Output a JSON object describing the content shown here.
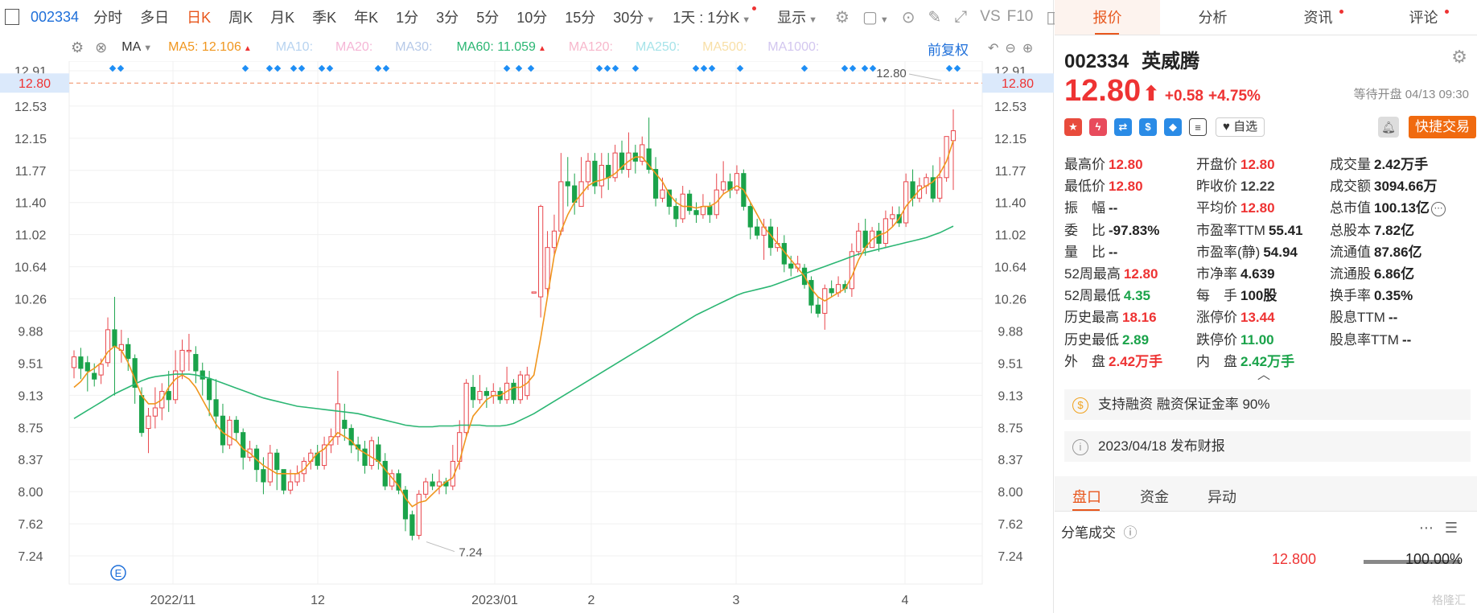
{
  "toolbar": {
    "code": "002334",
    "tabs": [
      "分时",
      "多日",
      "日K",
      "周K",
      "月K",
      "季K",
      "年K",
      "1分",
      "3分",
      "5分",
      "10分",
      "15分",
      "30分"
    ],
    "active_tab": "日K",
    "interval_select": "1天 : 1分K",
    "display_label": "显示",
    "vs_label": "VS",
    "f10_label": "F10"
  },
  "ma_row": {
    "label": "MA",
    "ma5": "MA5: 12.106",
    "ma10": "MA10:",
    "ma20": "MA20:",
    "ma30": "MA30:",
    "ma60": "MA60: 11.059",
    "ma120": "MA120:",
    "ma250": "MA250:",
    "ma500": "MA500:",
    "ma1000": "MA1000:",
    "fuquan": "前复权",
    "colors": {
      "ma5": "#f0961e",
      "ma10": "#b7d3f0",
      "ma20": "#f5b6d6",
      "ma30": "#b6c9e8",
      "ma60": "#2bb673",
      "ma120": "#f7b7cb",
      "ma250": "#a6e3e9",
      "ma500": "#f8dfa6",
      "ma1000": "#d2c6ef"
    }
  },
  "chart_data": {
    "type": "candlestick",
    "y_ticks": [
      "12.91",
      "12.53",
      "12.15",
      "11.77",
      "11.40",
      "11.02",
      "10.64",
      "10.26",
      "9.88",
      "9.51",
      "9.13",
      "8.75",
      "8.37",
      "8.00",
      "7.62",
      "7.24"
    ],
    "y_range": [
      7.05,
      12.91
    ],
    "x_labels": [
      "2022/11",
      "12",
      "2023/01",
      "2",
      "3",
      "4"
    ],
    "current_price_label": "12.80",
    "current_price": 12.8,
    "high_label": "12.80",
    "low_label": "7.24",
    "event_marker": "E",
    "candles": [
      [
        9.34,
        9.47,
        9.21,
        9.55
      ],
      [
        9.47,
        9.33,
        9.2,
        9.58
      ],
      [
        9.4,
        9.3,
        9.05,
        9.48
      ],
      [
        9.27,
        9.2,
        9.11,
        9.39
      ],
      [
        9.25,
        9.38,
        9.14,
        9.45
      ],
      [
        9.4,
        9.8,
        9.35,
        9.95
      ],
      [
        9.8,
        9.6,
        9.0,
        10.2
      ],
      [
        9.55,
        9.62,
        9.4,
        9.8
      ],
      [
        9.62,
        9.45,
        9.3,
        9.7
      ],
      [
        9.45,
        9.1,
        8.9,
        9.5
      ],
      [
        9.0,
        8.55,
        8.5,
        9.1
      ],
      [
        8.6,
        8.75,
        8.3,
        8.85
      ],
      [
        8.75,
        8.85,
        8.6,
        9.1
      ],
      [
        8.85,
        9.05,
        8.7,
        9.15
      ],
      [
        9.05,
        8.95,
        8.8,
        9.3
      ],
      [
        8.95,
        9.3,
        8.9,
        9.55
      ],
      [
        9.3,
        9.55,
        9.2,
        9.68
      ],
      [
        9.55,
        9.55,
        9.3,
        9.75
      ],
      [
        9.5,
        9.3,
        9.15,
        9.6
      ],
      [
        9.3,
        9.2,
        9.0,
        9.4
      ],
      [
        9.2,
        8.95,
        8.75,
        9.3
      ],
      [
        8.95,
        8.75,
        8.6,
        9.2
      ],
      [
        8.75,
        8.4,
        8.3,
        8.9
      ],
      [
        8.4,
        8.7,
        8.35,
        8.75
      ],
      [
        8.7,
        8.55,
        8.45,
        8.75
      ],
      [
        8.55,
        8.25,
        8.1,
        8.6
      ],
      [
        8.25,
        8.35,
        8.2,
        8.45
      ],
      [
        8.35,
        8.1,
        7.95,
        8.4
      ],
      [
        8.1,
        7.95,
        7.8,
        8.25
      ],
      [
        7.95,
        8.3,
        7.9,
        8.4
      ],
      [
        8.3,
        8.1,
        7.85,
        8.35
      ],
      [
        8.1,
        7.85,
        7.8,
        8.1
      ],
      [
        7.85,
        7.95,
        7.8,
        8.1
      ],
      [
        7.95,
        8.05,
        7.9,
        8.15
      ],
      [
        8.05,
        8.2,
        7.95,
        8.25
      ],
      [
        8.2,
        8.3,
        8.1,
        8.35
      ],
      [
        8.3,
        8.15,
        8.1,
        8.4
      ],
      [
        8.15,
        8.4,
        8.1,
        8.5
      ],
      [
        8.4,
        8.5,
        8.3,
        8.6
      ],
      [
        8.5,
        8.9,
        8.4,
        9.3
      ],
      [
        8.7,
        8.6,
        8.45,
        8.9
      ],
      [
        8.6,
        8.4,
        8.3,
        8.65
      ],
      [
        8.4,
        8.35,
        8.2,
        8.5
      ],
      [
        8.35,
        8.15,
        8.05,
        8.45
      ],
      [
        8.15,
        8.45,
        8.1,
        8.5
      ],
      [
        8.4,
        8.2,
        8.1,
        8.5
      ],
      [
        8.2,
        7.9,
        7.85,
        8.3
      ],
      [
        7.9,
        8.05,
        7.85,
        8.1
      ],
      [
        8.05,
        7.85,
        7.8,
        8.1
      ],
      [
        7.85,
        7.5,
        7.35,
        7.9
      ],
      [
        7.55,
        7.3,
        7.24,
        7.6
      ],
      [
        7.3,
        7.8,
        7.25,
        7.85
      ],
      [
        7.8,
        7.95,
        7.75,
        8.0
      ],
      [
        7.95,
        7.9,
        7.85,
        8.05
      ],
      [
        7.9,
        7.95,
        7.8,
        8.1
      ],
      [
        7.95,
        7.9,
        7.8,
        8.0
      ],
      [
        7.9,
        8.2,
        7.85,
        8.4
      ],
      [
        8.2,
        8.55,
        8.1,
        8.7
      ],
      [
        8.55,
        9.15,
        8.5,
        9.2
      ],
      [
        9.1,
        8.95,
        8.85,
        9.25
      ],
      [
        8.95,
        9.05,
        8.9,
        9.25
      ],
      [
        9.05,
        9.0,
        8.85,
        9.1
      ],
      [
        9.0,
        9.05,
        8.9,
        9.15
      ],
      [
        9.05,
        8.95,
        8.9,
        9.1
      ],
      [
        8.95,
        9.15,
        8.9,
        9.35
      ],
      [
        9.15,
        8.95,
        8.9,
        9.2
      ],
      [
        8.95,
        9.25,
        8.9,
        9.3
      ],
      [
        9.0,
        9.25,
        8.95,
        9.35
      ],
      [
        10.26,
        10.26,
        10.26,
        10.26
      ],
      [
        10.2,
        11.3,
        9.95,
        11.32
      ],
      [
        10.3,
        10.8,
        10.2,
        11.0
      ],
      [
        10.8,
        11.0,
        10.7,
        11.2
      ],
      [
        11.0,
        11.6,
        10.95,
        11.95
      ],
      [
        11.6,
        11.55,
        11.3,
        11.9
      ],
      [
        11.55,
        11.35,
        11.2,
        11.7
      ],
      [
        11.3,
        11.6,
        11.3,
        11.9
      ],
      [
        11.6,
        11.85,
        11.5,
        11.95
      ],
      [
        11.85,
        11.55,
        11.45,
        11.95
      ],
      [
        11.55,
        11.8,
        11.4,
        11.95
      ],
      [
        11.8,
        11.65,
        11.5,
        11.95
      ],
      [
        11.65,
        11.95,
        11.6,
        12.05
      ],
      [
        11.95,
        11.75,
        11.7,
        12.1
      ],
      [
        11.75,
        11.95,
        11.65,
        12.2
      ],
      [
        11.95,
        11.85,
        11.7,
        12.05
      ],
      [
        11.85,
        12.05,
        11.8,
        12.15
      ],
      [
        12.0,
        11.75,
        11.7,
        12.38
      ],
      [
        11.75,
        11.4,
        11.3,
        11.9
      ],
      [
        11.4,
        11.5,
        11.35,
        11.65
      ],
      [
        11.5,
        11.3,
        11.2,
        11.5
      ],
      [
        11.3,
        11.15,
        11.05,
        11.4
      ],
      [
        11.15,
        11.45,
        11.1,
        11.55
      ],
      [
        11.45,
        11.25,
        11.2,
        11.5
      ],
      [
        11.25,
        11.2,
        11.1,
        11.35
      ],
      [
        11.2,
        11.3,
        11.15,
        11.45
      ],
      [
        11.3,
        11.2,
        11.1,
        11.35
      ],
      [
        11.2,
        11.5,
        11.15,
        11.7
      ],
      [
        11.5,
        11.6,
        11.45,
        11.85
      ],
      [
        11.6,
        11.5,
        11.4,
        11.7
      ],
      [
        11.5,
        11.7,
        11.45,
        11.8
      ],
      [
        11.7,
        11.3,
        11.25,
        11.75
      ],
      [
        11.3,
        11.05,
        10.9,
        11.35
      ],
      [
        11.05,
        10.95,
        10.9,
        11.15
      ],
      [
        10.95,
        11.05,
        10.65,
        11.15
      ],
      [
        11.05,
        10.8,
        10.7,
        11.15
      ],
      [
        10.8,
        10.85,
        10.75,
        11.05
      ],
      [
        10.85,
        10.6,
        10.5,
        10.95
      ],
      [
        10.6,
        10.55,
        10.45,
        10.7
      ],
      [
        10.55,
        10.6,
        10.5,
        10.7
      ],
      [
        10.55,
        10.35,
        10.3,
        10.6
      ],
      [
        10.4,
        10.1,
        10.0,
        10.45
      ],
      [
        10.1,
        10.0,
        9.95,
        10.2
      ],
      [
        10.0,
        10.3,
        9.8,
        10.35
      ],
      [
        10.3,
        10.25,
        10.2,
        10.4
      ],
      [
        10.25,
        10.35,
        10.2,
        10.45
      ],
      [
        10.35,
        10.3,
        10.25,
        10.4
      ],
      [
        10.3,
        10.75,
        10.2,
        10.85
      ],
      [
        10.75,
        11.0,
        10.7,
        11.1
      ],
      [
        11.0,
        10.8,
        10.7,
        11.15
      ],
      [
        10.8,
        11.0,
        10.8,
        11.05
      ],
      [
        11.0,
        10.85,
        10.75,
        11.1
      ],
      [
        10.85,
        11.15,
        10.8,
        11.25
      ],
      [
        11.15,
        11.2,
        11.05,
        11.3
      ],
      [
        11.2,
        11.1,
        11.05,
        11.3
      ],
      [
        11.1,
        11.6,
        11.05,
        11.7
      ],
      [
        11.6,
        11.4,
        11.3,
        11.75
      ],
      [
        11.4,
        11.55,
        11.35,
        11.65
      ],
      [
        11.55,
        11.65,
        11.45,
        11.7
      ],
      [
        11.65,
        11.4,
        11.35,
        11.8
      ],
      [
        11.4,
        11.65,
        11.35,
        11.9
      ],
      [
        11.65,
        12.15,
        11.6,
        12.15
      ],
      [
        12.1,
        12.22,
        11.5,
        12.48
      ]
    ],
    "ma5": [
      9.1,
      9.17,
      9.28,
      9.33,
      9.4,
      9.53,
      9.6,
      9.55,
      9.4,
      9.2,
      9.0,
      8.9,
      8.9,
      8.95,
      9.1,
      9.2,
      9.25,
      9.2,
      9.1,
      8.95,
      8.8,
      8.65,
      8.55,
      8.5,
      8.45,
      8.35,
      8.3,
      8.22,
      8.15,
      8.1,
      8.05,
      8.05,
      8.05,
      8.05,
      8.1,
      8.2,
      8.3,
      8.35,
      8.45,
      8.55,
      8.5,
      8.45,
      8.35,
      8.3,
      8.25,
      8.2,
      8.1,
      8.0,
      7.9,
      7.75,
      7.65,
      7.7,
      7.72,
      7.8,
      7.88,
      7.95,
      8.0,
      8.2,
      8.5,
      8.75,
      8.85,
      8.95,
      9.0,
      9.0,
      9.05,
      9.1,
      9.1,
      9.15,
      9.25,
      9.7,
      10.2,
      10.7,
      11.0,
      11.2,
      11.35,
      11.45,
      11.55,
      11.6,
      11.62,
      11.65,
      11.7,
      11.78,
      11.85,
      11.9,
      11.9,
      11.8,
      11.7,
      11.6,
      11.45,
      11.35,
      11.3,
      11.3,
      11.28,
      11.3,
      11.3,
      11.35,
      11.45,
      11.5,
      11.55,
      11.5,
      11.35,
      11.2,
      11.05,
      10.95,
      10.85,
      10.75,
      10.65,
      10.55,
      10.45,
      10.3,
      10.2,
      10.15,
      10.2,
      10.25,
      10.3,
      10.45,
      10.65,
      10.8,
      10.9,
      10.95,
      10.98,
      11.05,
      11.15,
      11.3,
      11.4,
      11.5,
      11.55,
      11.6,
      11.7,
      11.85,
      12.1
    ],
    "ma60": [
      8.72,
      8.77,
      8.82,
      8.87,
      8.92,
      8.97,
      9.02,
      9.06,
      9.1,
      9.14,
      9.18,
      9.21,
      9.23,
      9.24,
      9.25,
      9.26,
      9.26,
      9.26,
      9.25,
      9.23,
      9.21,
      9.18,
      9.15,
      9.12,
      9.09,
      9.06,
      9.03,
      9.0,
      8.97,
      8.95,
      8.93,
      8.91,
      8.89,
      8.87,
      8.86,
      8.85,
      8.84,
      8.83,
      8.82,
      8.81,
      8.8,
      8.79,
      8.78,
      8.76,
      8.74,
      8.72,
      8.7,
      8.68,
      8.66,
      8.64,
      8.63,
      8.62,
      8.62,
      8.62,
      8.63,
      8.63,
      8.63,
      8.64,
      8.64,
      8.64,
      8.64,
      8.63,
      8.63,
      8.63,
      8.64,
      8.66,
      8.7,
      8.74,
      8.78,
      8.83,
      8.88,
      8.93,
      8.98,
      9.03,
      9.08,
      9.13,
      9.18,
      9.23,
      9.28,
      9.33,
      9.38,
      9.43,
      9.48,
      9.53,
      9.58,
      9.63,
      9.68,
      9.73,
      9.78,
      9.83,
      9.88,
      9.93,
      9.98,
      10.02,
      10.06,
      10.1,
      10.14,
      10.18,
      10.22,
      10.25,
      10.27,
      10.29,
      10.31,
      10.33,
      10.36,
      10.39,
      10.42,
      10.45,
      10.48,
      10.51,
      10.54,
      10.57,
      10.6,
      10.63,
      10.66,
      10.69,
      10.72,
      10.74,
      10.76,
      10.78,
      10.8,
      10.82,
      10.84,
      10.86,
      10.88,
      10.9,
      10.92,
      10.95,
      10.98,
      11.02,
      11.06
    ]
  },
  "right": {
    "tabs": [
      "报价",
      "分析",
      "资讯",
      "评论"
    ],
    "stock_code": "002334",
    "stock_name": "英威腾",
    "price": "12.80",
    "arrow": "⬆",
    "change": "+0.58",
    "change_pct": "+4.75%",
    "status": "等待开盘 04/13 09:30",
    "zixuan": "自选",
    "quick_trade": "快捷交易",
    "quote": [
      [
        {
          "l": "最高价",
          "v": "12.80",
          "c": "red"
        },
        {
          "l": "开盘价",
          "v": "12.80",
          "c": "red"
        },
        {
          "l": "成交量",
          "v": "2.42万手",
          "c": ""
        }
      ],
      [
        {
          "l": "最低价",
          "v": "12.80",
          "c": "red"
        },
        {
          "l": "昨收价",
          "v": "12.22",
          "c": "grey"
        },
        {
          "l": "成交额",
          "v": "3094.66万",
          "c": ""
        }
      ],
      [
        {
          "l": "振　幅",
          "v": "--",
          "c": ""
        },
        {
          "l": "平均价",
          "v": "12.80",
          "c": "red"
        },
        {
          "l": "总市值",
          "v": "100.13亿",
          "c": "",
          "more": true
        }
      ],
      [
        {
          "l": "委　比",
          "v": "-97.83%",
          "c": ""
        },
        {
          "l": "市盈率TTM",
          "v": "55.41",
          "c": ""
        },
        {
          "l": "总股本",
          "v": "7.82亿",
          "c": ""
        }
      ],
      [
        {
          "l": "量　比",
          "v": "--",
          "c": ""
        },
        {
          "l": "市盈率(静)",
          "v": "54.94",
          "c": ""
        },
        {
          "l": "流通值",
          "v": "87.86亿",
          "c": ""
        }
      ],
      [
        {
          "l": "52周最高",
          "v": "12.80",
          "c": "red"
        },
        {
          "l": "市净率",
          "v": "4.639",
          "c": ""
        },
        {
          "l": "流通股",
          "v": "6.86亿",
          "c": ""
        }
      ],
      [
        {
          "l": "52周最低",
          "v": "4.35",
          "c": "green"
        },
        {
          "l": "每　手",
          "v": "100股",
          "c": ""
        },
        {
          "l": "换手率",
          "v": "0.35%",
          "c": ""
        }
      ],
      [
        {
          "l": "历史最高",
          "v": "18.16",
          "c": "red"
        },
        {
          "l": "涨停价",
          "v": "13.44",
          "c": "red"
        },
        {
          "l": "股息TTM",
          "v": "--",
          "c": ""
        }
      ],
      [
        {
          "l": "历史最低",
          "v": "2.89",
          "c": "green"
        },
        {
          "l": "跌停价",
          "v": "11.00",
          "c": "green"
        },
        {
          "l": "股息率TTM",
          "v": "--",
          "c": ""
        }
      ],
      [
        {
          "l": "外　盘",
          "v": "2.42万手",
          "c": "red"
        },
        {
          "l": "内　盘",
          "v": "2.42万手",
          "c": "green"
        },
        null
      ]
    ],
    "margin_info": "支持融资 融资保证金率 90%",
    "report_info": "2023/04/18  发布财报",
    "bottom_tabs": [
      "盘口",
      "资金",
      "异动"
    ],
    "fenbi_title": "分笔成交",
    "tick_price": "12.800",
    "tick_pct": "100.00%",
    "tick_share": 1.0,
    "watermark": "格隆汇"
  }
}
